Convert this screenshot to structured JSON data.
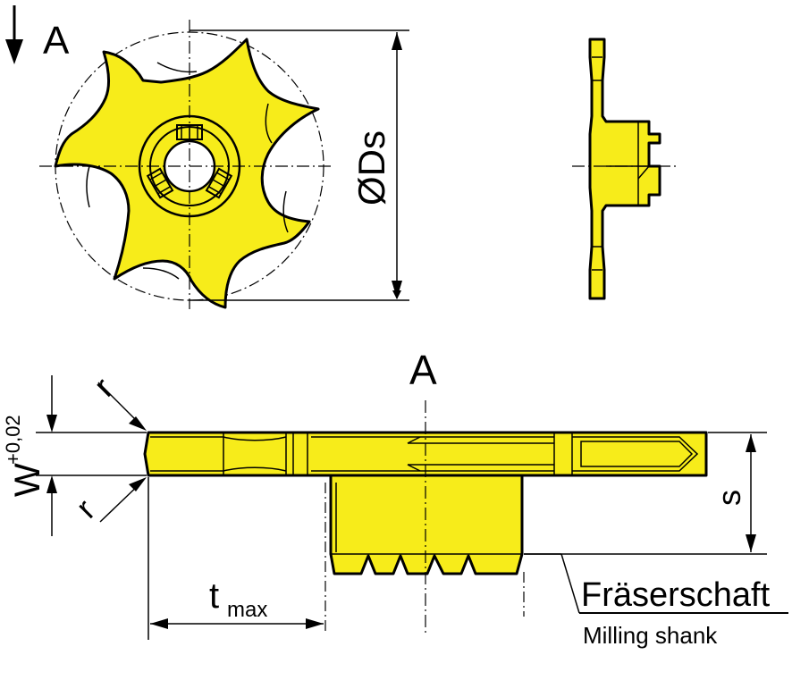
{
  "colors": {
    "part_fill": "#f7ec1a",
    "line": "#000000",
    "background": "#ffffff"
  },
  "labels": {
    "view_arrow": "A",
    "view_label": "A",
    "diameter": "ØDs",
    "r_top": "r",
    "r_bottom": "r",
    "width_main": "W",
    "width_tolerance": "+0,02",
    "s": "s",
    "t_main": "t",
    "t_sub": "max",
    "shank_de": "Fräserschaft",
    "shank_en": "Milling shank"
  }
}
